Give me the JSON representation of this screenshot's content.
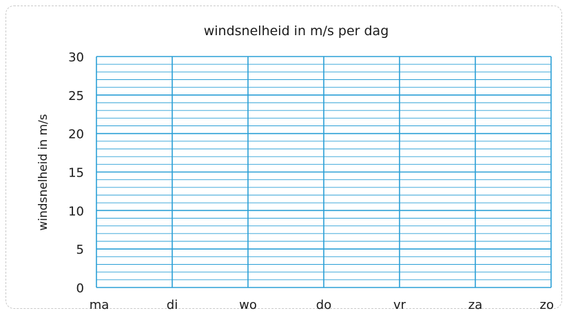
{
  "chart_data": {
    "type": "line",
    "title": "windsnelheid in m/s per dag",
    "xlabel": "",
    "ylabel": "windsnelheid in m/s",
    "categories": [
      "ma",
      "di",
      "wo",
      "do",
      "vr",
      "za",
      "zo"
    ],
    "yticks": [
      "0",
      "5",
      "10",
      "15",
      "20",
      "25",
      "30"
    ],
    "ylim": [
      0,
      30
    ],
    "minor_step": 1,
    "major_step": 5,
    "series": [],
    "grid": true,
    "grid_color": "#2a9fd6"
  }
}
